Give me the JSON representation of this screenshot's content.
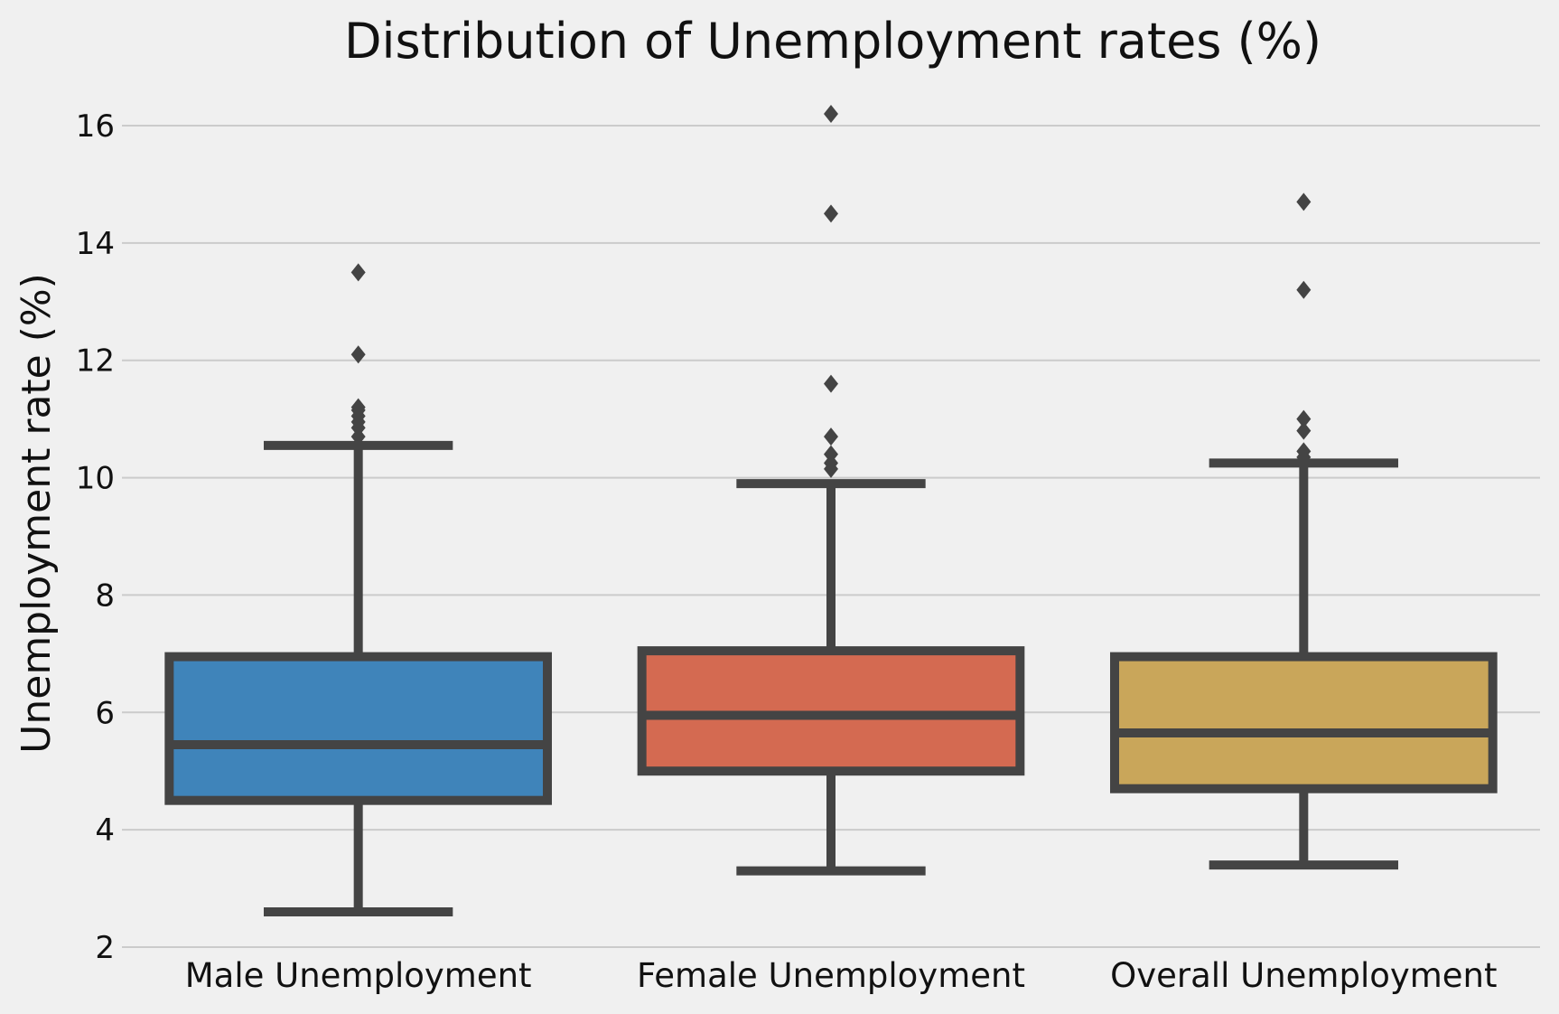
{
  "chart_data": {
    "type": "box",
    "title": "Distribution of Unemployment rates (%)",
    "ylabel": "Unemployment rate (%)",
    "xlabel": "",
    "ylim": [
      2,
      16.7
    ],
    "yticks": [
      2,
      4,
      6,
      8,
      10,
      12,
      14,
      16
    ],
    "grid": true,
    "line_color": "#444444",
    "background": "#f0f0f0",
    "categories": [
      "Male Unemployment",
      "Female Unemployment",
      "Overall Unemployment"
    ],
    "boxes": [
      {
        "name": "Male Unemployment",
        "color": "#3f84ba",
        "whisker_low": 2.6,
        "q1": 4.5,
        "median": 5.45,
        "q3": 6.95,
        "whisker_high": 10.55,
        "outliers": [
          10.7,
          10.85,
          10.95,
          11.05,
          11.15,
          11.2,
          12.1,
          13.5
        ]
      },
      {
        "name": "Female Unemployment",
        "color": "#d46a51",
        "whisker_low": 3.3,
        "q1": 5.0,
        "median": 5.95,
        "q3": 7.05,
        "whisker_high": 9.9,
        "outliers": [
          10.15,
          10.25,
          10.4,
          10.7,
          11.6,
          14.5,
          16.2
        ]
      },
      {
        "name": "Overall Unemployment",
        "color": "#c9a65a",
        "whisker_low": 3.4,
        "q1": 4.7,
        "median": 5.65,
        "q3": 6.95,
        "whisker_high": 10.25,
        "outliers": [
          10.35,
          10.45,
          10.8,
          11.0,
          13.2,
          14.7
        ]
      }
    ]
  }
}
